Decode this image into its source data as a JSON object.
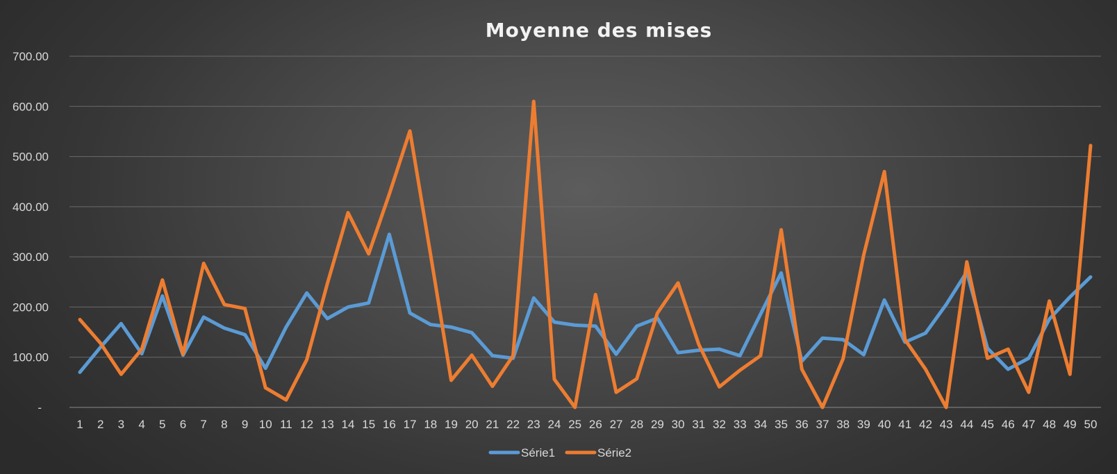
{
  "chart_data": {
    "type": "line",
    "title": "Moyenne des mises",
    "xlabel": "",
    "ylabel": "",
    "ylim": [
      0,
      700
    ],
    "y_ticks": [
      0,
      100,
      200,
      300,
      400,
      500,
      600,
      700
    ],
    "y_tick_labels": [
      "-",
      "100.00",
      "200.00",
      "300.00",
      "400.00",
      "500.00",
      "600.00",
      "700.00"
    ],
    "categories": [
      "1",
      "2",
      "3",
      "4",
      "5",
      "6",
      "7",
      "8",
      "9",
      "10",
      "11",
      "12",
      "13",
      "14",
      "15",
      "16",
      "17",
      "18",
      "19",
      "20",
      "21",
      "22",
      "23",
      "24",
      "25",
      "26",
      "27",
      "28",
      "29",
      "30",
      "31",
      "32",
      "33",
      "34",
      "35",
      "36",
      "37",
      "38",
      "39",
      "40",
      "41",
      "42",
      "43",
      "44",
      "45",
      "46",
      "47",
      "48",
      "49",
      "50"
    ],
    "grid": true,
    "legend_position": "bottom",
    "series": [
      {
        "name": "Série1",
        "color": "#5b9bd5",
        "values": [
          70,
          120,
          167,
          107,
          222,
          104,
          180,
          158,
          145,
          78,
          160,
          228,
          177,
          200,
          208,
          345,
          188,
          165,
          160,
          149,
          103,
          98,
          218,
          170,
          164,
          162,
          106,
          162,
          178,
          109,
          114,
          116,
          103,
          186,
          268,
          92,
          138,
          135,
          105,
          214,
          130,
          148,
          205,
          270,
          118,
          76,
          98,
          176,
          220,
          260
        ]
      },
      {
        "name": "Série2",
        "color": "#ed7d31",
        "values": [
          175,
          128,
          66,
          116,
          254,
          106,
          287,
          205,
          197,
          39,
          15,
          95,
          247,
          388,
          306,
          425,
          551,
          305,
          54,
          104,
          42,
          103,
          610,
          56,
          0,
          225,
          30,
          57,
          188,
          248,
          126,
          41,
          74,
          103,
          354,
          76,
          0,
          97,
          304,
          470,
          135,
          76,
          0,
          290,
          98,
          116,
          30,
          212,
          66,
          522
        ]
      }
    ]
  }
}
